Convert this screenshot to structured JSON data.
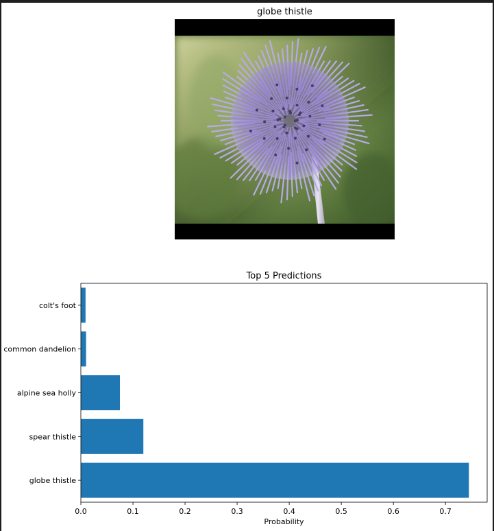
{
  "image_panel": {
    "title": "globe thistle",
    "image_subject": "globe thistle flower photo",
    "background_color": "#000000"
  },
  "chart_data": {
    "type": "bar",
    "orientation": "horizontal",
    "title": "Top 5 Predictions",
    "xlabel": "Probability",
    "ylabel": "",
    "categories": [
      "globe thistle",
      "spear thistle",
      "alpine sea holly",
      "common dandelion",
      "colt's foot"
    ],
    "values": [
      0.745,
      0.12,
      0.075,
      0.01,
      0.009
    ],
    "xlim": [
      0,
      0.78
    ],
    "xticks": [
      0.0,
      0.1,
      0.2,
      0.3,
      0.4,
      0.5,
      0.6,
      0.7
    ],
    "xtick_labels": [
      "0.0",
      "0.1",
      "0.2",
      "0.3",
      "0.4",
      "0.5",
      "0.6",
      "0.7"
    ],
    "bar_color": "#1f77b4",
    "grid": false
  }
}
